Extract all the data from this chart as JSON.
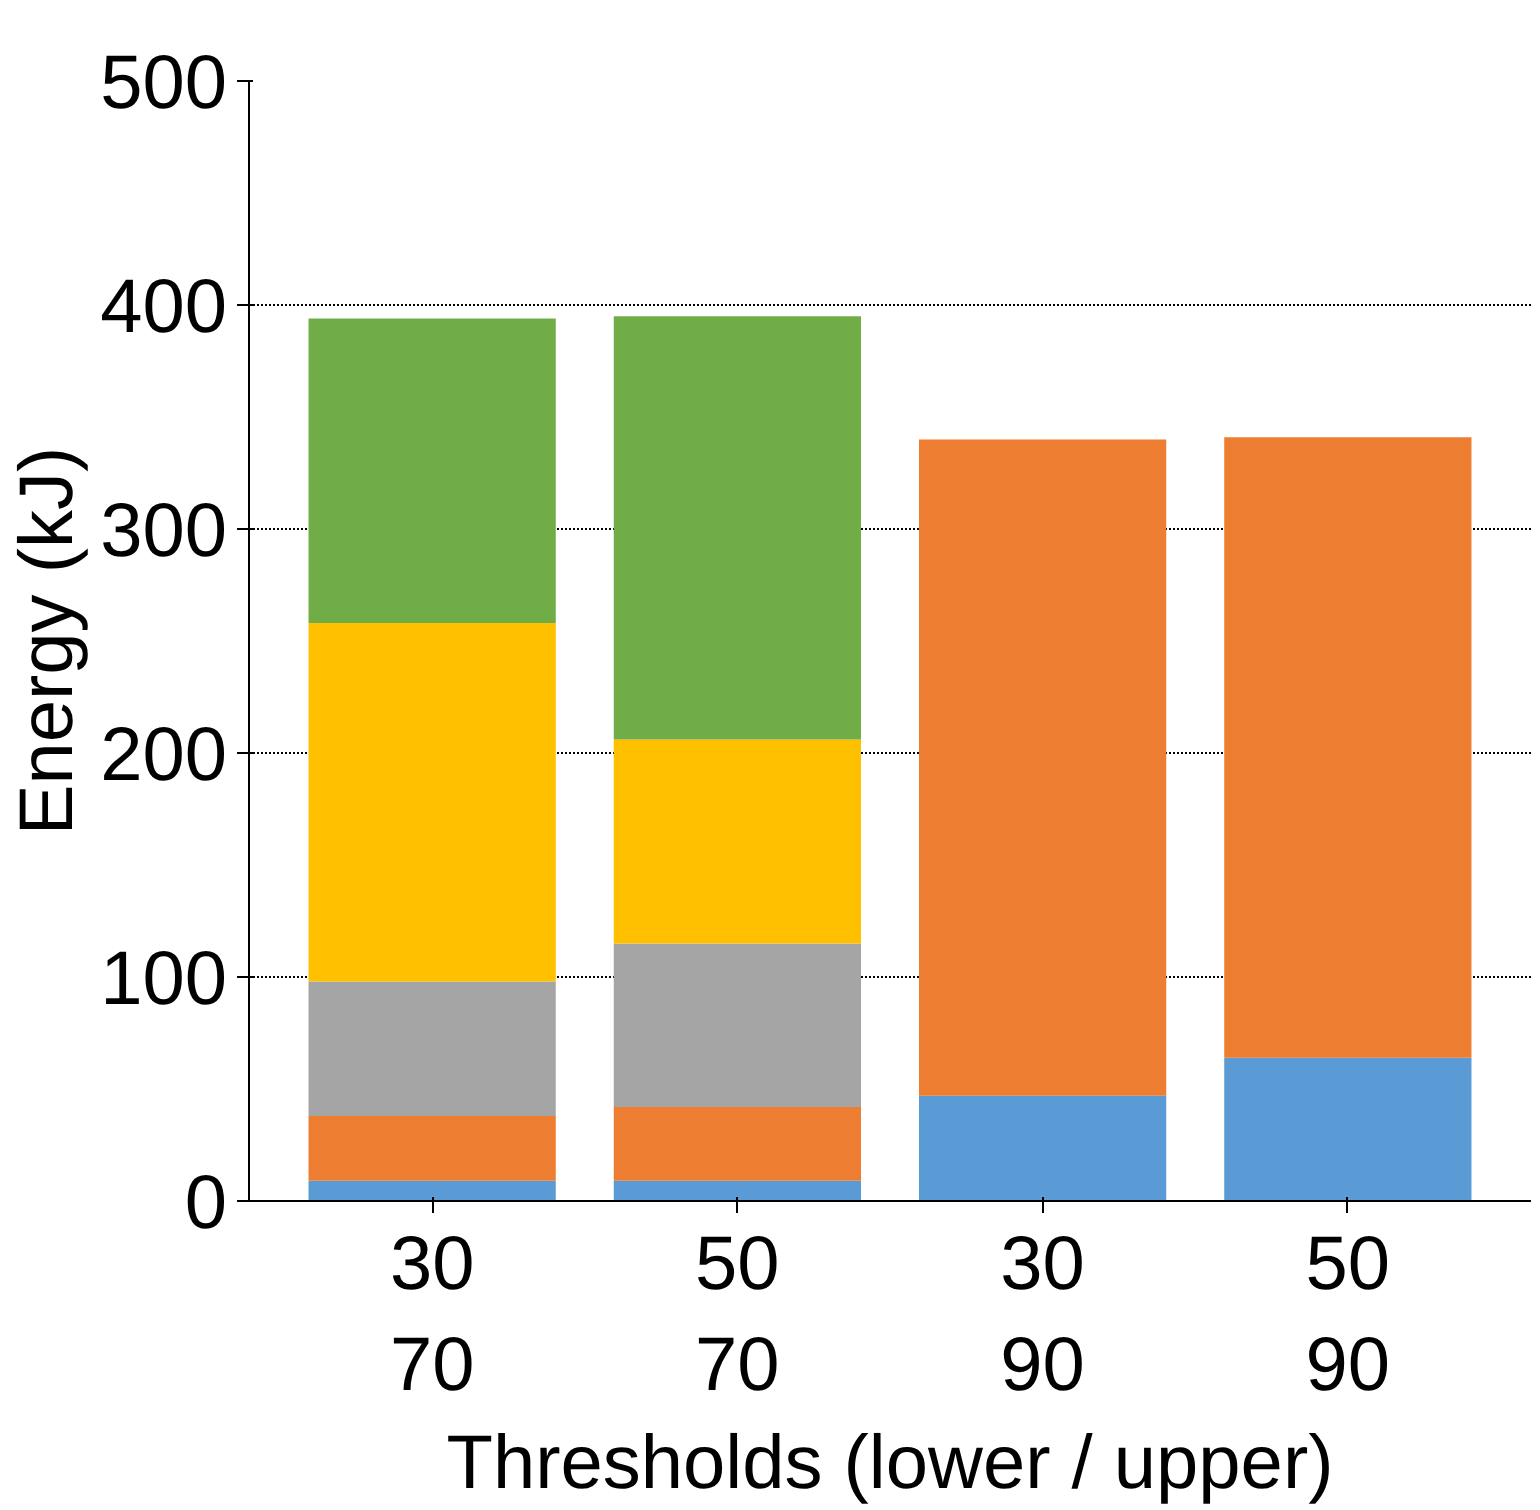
{
  "chart_data": {
    "type": "bar",
    "stacked": true,
    "xlabel": "Thresholds (lower / upper)",
    "ylabel": "Energy (kJ)",
    "categories": [
      "30\n70",
      "50\n70",
      "30\n90",
      "50\n90"
    ],
    "series": [
      {
        "color": "#5b9bd5",
        "values": [
          9,
          9,
          47,
          64
        ]
      },
      {
        "color": "#ed7d31",
        "values": [
          29,
          33,
          293,
          277
        ]
      },
      {
        "color": "#a5a5a5",
        "values": [
          60,
          73,
          null,
          null
        ]
      },
      {
        "color": "#ffc000",
        "values": [
          160,
          91,
          null,
          null
        ]
      },
      {
        "color": "#70ad47",
        "values": [
          136,
          189,
          null,
          null
        ]
      }
    ],
    "ylim": [
      0,
      500
    ],
    "yticks": [
      0,
      100,
      200,
      300,
      400,
      500
    ],
    "grid": "y"
  }
}
